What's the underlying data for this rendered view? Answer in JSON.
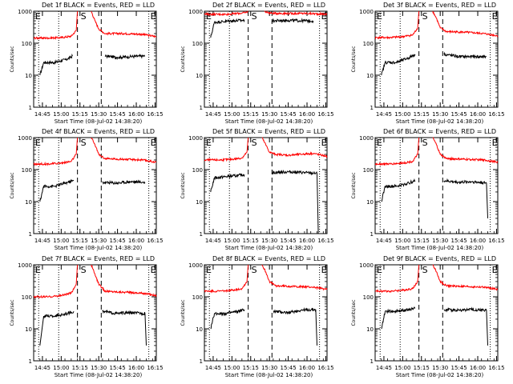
{
  "figure": {
    "x_axis_label": "Start Time (08-Jul-02 14:38:20)",
    "y_axis_label": "Counts/sec",
    "x_tick_labels": [
      "14:45",
      "15:00",
      "15:15",
      "15:30",
      "15:45",
      "16:00",
      "16:15"
    ],
    "y_tick_labels": [
      "1",
      "10",
      "100",
      "1000"
    ],
    "marker_labels": {
      "start": "E",
      "saa": "S",
      "end": "E"
    },
    "colors": {
      "events": "#000000",
      "lld": "#ff0000"
    }
  },
  "chart_data": [
    {
      "type": "line",
      "title": "Det 1f BLACK = Events, RED = LLD",
      "xlabel": "Start Time (08-Jul-02 14:38:20)",
      "ylabel": "Counts/sec",
      "xlim": [
        "14:38",
        "16:16"
      ],
      "ylim": [
        1,
        1000
      ],
      "yscale": "log",
      "markers": {
        "dotted": [
          "14:42",
          "14:58",
          "16:10"
        ],
        "dashed": [
          "15:13",
          "15:32"
        ]
      },
      "series": [
        {
          "name": "Events",
          "color": "#000000",
          "segments": [
            {
              "x": [
                "14:43",
                "14:46",
                "14:55",
                "15:05",
                "15:09"
              ],
              "y": [
                10,
                25,
                25,
                32,
                40
              ]
            },
            {
              "x": [
                "15:35",
                "15:45",
                "15:55",
                "16:07"
              ],
              "y": [
                40,
                36,
                38,
                40
              ]
            }
          ]
        },
        {
          "name": "LLD",
          "color": "#ff0000",
          "segments": [
            {
              "x": [
                "14:38",
                "14:50",
                "15:00",
                "15:08",
                "15:12",
                "15:13"
              ],
              "y": [
                145,
                145,
                150,
                165,
                250,
                1000
              ]
            },
            {
              "x": [
                "15:24",
                "15:27",
                "15:30",
                "15:35",
                "15:50",
                "16:05",
                "16:16"
              ],
              "y": [
                1000,
                500,
                280,
                200,
                200,
                190,
                160
              ]
            }
          ]
        }
      ]
    },
    {
      "type": "line",
      "title": "Det 2f BLACK = Events, RED = LLD",
      "xlabel": "Start Time (08-Jul-02 14:38:20)",
      "ylabel": "Counts/sec",
      "xlim": [
        "14:38",
        "16:16"
      ],
      "ylim": [
        1,
        1000
      ],
      "yscale": "log",
      "markers": {
        "dotted": [
          "14:42",
          "14:58",
          "16:10"
        ],
        "dashed": [
          "15:13",
          "15:32"
        ]
      },
      "series": [
        {
          "name": "Events",
          "color": "#000000",
          "segments": [
            {
              "x": [
                "14:43",
                "14:46",
                "15:00",
                "15:10"
              ],
              "y": [
                150,
                450,
                500,
                520
              ]
            },
            {
              "x": [
                "15:32",
                "15:45",
                "16:00",
                "16:05"
              ],
              "y": [
                500,
                520,
                500,
                500
              ]
            }
          ]
        },
        {
          "name": "LLD",
          "color": "#ff0000",
          "segments": [
            {
              "x": [
                "14:38",
                "14:55",
                "15:05",
                "15:11",
                "15:13"
              ],
              "y": [
                800,
                800,
                850,
                900,
                1000
              ]
            },
            {
              "x": [
                "15:26",
                "15:29",
                "15:32",
                "15:45",
                "16:00",
                "16:16"
              ],
              "y": [
                1000,
                900,
                860,
                850,
                850,
                800
              ]
            }
          ]
        }
      ]
    },
    {
      "type": "line",
      "title": "Det 3f BLACK = Events, RED = LLD",
      "xlabel": "Start Time (08-Jul-02 14:38:20)",
      "ylabel": "Counts/sec",
      "xlim": [
        "14:38",
        "16:16"
      ],
      "ylim": [
        1,
        1000
      ],
      "yscale": "log",
      "markers": {
        "dotted": [
          "14:42",
          "14:58",
          "16:10"
        ],
        "dashed": [
          "15:13",
          "15:32"
        ]
      },
      "series": [
        {
          "name": "Events",
          "color": "#000000",
          "segments": [
            {
              "x": [
                "14:43",
                "14:46",
                "14:55",
                "15:05",
                "15:10"
              ],
              "y": [
                10,
                25,
                25,
                35,
                45
              ]
            },
            {
              "x": [
                "15:33",
                "15:45",
                "15:55",
                "16:07"
              ],
              "y": [
                45,
                38,
                38,
                38
              ]
            }
          ]
        },
        {
          "name": "LLD",
          "color": "#ff0000",
          "segments": [
            {
              "x": [
                "14:38",
                "14:50",
                "15:00",
                "15:08",
                "15:12",
                "15:13"
              ],
              "y": [
                150,
                150,
                160,
                180,
                300,
                1000
              ]
            },
            {
              "x": [
                "15:24",
                "15:27",
                "15:30",
                "15:35",
                "15:50",
                "16:05",
                "16:16"
              ],
              "y": [
                1000,
                600,
                300,
                230,
                220,
                200,
                170
              ]
            }
          ]
        }
      ]
    },
    {
      "type": "line",
      "title": "Det 4f BLACK = Events, RED = LLD",
      "xlabel": "Start Time (08-Jul-02 14:38:20)",
      "ylabel": "Counts/sec",
      "xlim": [
        "14:38",
        "16:16"
      ],
      "ylim": [
        1,
        1000
      ],
      "yscale": "log",
      "markers": {
        "dotted": [
          "14:42",
          "14:58",
          "16:10"
        ],
        "dashed": [
          "15:13",
          "15:32"
        ]
      },
      "series": [
        {
          "name": "Events",
          "color": "#000000",
          "segments": [
            {
              "x": [
                "14:43",
                "14:46",
                "14:55",
                "15:05",
                "15:10"
              ],
              "y": [
                10,
                30,
                30,
                40,
                45
              ]
            },
            {
              "x": [
                "15:33",
                "15:45",
                "15:55",
                "16:07"
              ],
              "y": [
                40,
                38,
                42,
                40
              ]
            }
          ]
        },
        {
          "name": "LLD",
          "color": "#ff0000",
          "segments": [
            {
              "x": [
                "14:38",
                "14:50",
                "15:00",
                "15:08",
                "15:12",
                "15:13"
              ],
              "y": [
                150,
                150,
                160,
                180,
                300,
                1000
              ]
            },
            {
              "x": [
                "15:24",
                "15:27",
                "15:30",
                "15:35",
                "15:50",
                "16:05",
                "16:16"
              ],
              "y": [
                1000,
                600,
                300,
                220,
                210,
                200,
                170
              ]
            }
          ]
        }
      ]
    },
    {
      "type": "line",
      "title": "Det 5f BLACK = Events, RED = LLD",
      "xlabel": "Start Time (08-Jul-02 14:38:20)",
      "ylabel": "Counts/sec",
      "xlim": [
        "14:38",
        "16:16"
      ],
      "ylim": [
        1,
        1000
      ],
      "yscale": "log",
      "markers": {
        "dotted": [
          "14:42",
          "14:58",
          "16:10"
        ],
        "dashed": [
          "15:13",
          "15:32"
        ]
      },
      "series": [
        {
          "name": "Events",
          "color": "#000000",
          "segments": [
            {
              "x": [
                "14:43",
                "14:46",
                "14:55",
                "15:05",
                "15:10"
              ],
              "y": [
                20,
                55,
                60,
                65,
                70
              ]
            },
            {
              "x": [
                "15:32",
                "15:45",
                "16:00",
                "16:08",
                "16:09"
              ],
              "y": [
                80,
                85,
                80,
                75,
                1
              ]
            }
          ]
        },
        {
          "name": "LLD",
          "color": "#ff0000",
          "segments": [
            {
              "x": [
                "14:38",
                "14:50",
                "15:00",
                "15:08",
                "15:12",
                "15:13"
              ],
              "y": [
                200,
                200,
                210,
                230,
                350,
                1000
              ]
            },
            {
              "x": [
                "15:24",
                "15:27",
                "15:30",
                "15:35",
                "15:45",
                "15:55",
                "16:05",
                "16:16"
              ],
              "y": [
                1000,
                600,
                350,
                300,
                280,
                300,
                320,
                260
              ]
            }
          ]
        }
      ]
    },
    {
      "type": "line",
      "title": "Det 6f BLACK = Events, RED = LLD",
      "xlabel": "Start Time (08-Jul-02 14:38:20)",
      "ylabel": "Counts/sec",
      "xlim": [
        "14:38",
        "16:16"
      ],
      "ylim": [
        1,
        1000
      ],
      "yscale": "log",
      "markers": {
        "dotted": [
          "14:42",
          "14:58",
          "16:10"
        ],
        "dashed": [
          "15:13",
          "15:32"
        ]
      },
      "series": [
        {
          "name": "Events",
          "color": "#000000",
          "segments": [
            {
              "x": [
                "14:43",
                "14:46",
                "14:55",
                "15:05",
                "15:10"
              ],
              "y": [
                10,
                30,
                30,
                38,
                45
              ]
            },
            {
              "x": [
                "15:33",
                "15:45",
                "15:55",
                "16:07",
                "16:08"
              ],
              "y": [
                45,
                40,
                42,
                38,
                3
              ]
            }
          ]
        },
        {
          "name": "LLD",
          "color": "#ff0000",
          "segments": [
            {
              "x": [
                "14:38",
                "14:50",
                "15:00",
                "15:08",
                "15:12",
                "15:13"
              ],
              "y": [
                150,
                150,
                160,
                180,
                300,
                1000
              ]
            },
            {
              "x": [
                "15:24",
                "15:27",
                "15:30",
                "15:35",
                "15:50",
                "16:05",
                "16:16"
              ],
              "y": [
                1000,
                600,
                300,
                220,
                210,
                200,
                170
              ]
            }
          ]
        }
      ]
    },
    {
      "type": "line",
      "title": "Det 7f BLACK = Events, RED = LLD",
      "xlabel": "Start Time (08-Jul-02 14:38:20)",
      "ylabel": "Counts/sec",
      "xlim": [
        "14:38",
        "16:16"
      ],
      "ylim": [
        1,
        1000
      ],
      "yscale": "log",
      "markers": {
        "dotted": [
          "14:42",
          "14:58",
          "16:10"
        ],
        "dashed": [
          "15:13",
          "15:32"
        ]
      },
      "series": [
        {
          "name": "Events",
          "color": "#000000",
          "segments": [
            {
              "x": [
                "14:43",
                "14:46",
                "14:55",
                "15:05",
                "15:10"
              ],
              "y": [
                3,
                25,
                25,
                30,
                35
              ]
            },
            {
              "x": [
                "15:33",
                "15:45",
                "15:55",
                "16:07",
                "16:08"
              ],
              "y": [
                35,
                30,
                32,
                30,
                3
              ]
            }
          ]
        },
        {
          "name": "LLD",
          "color": "#ff0000",
          "segments": [
            {
              "x": [
                "14:38",
                "14:50",
                "15:00",
                "15:08",
                "15:12",
                "15:13"
              ],
              "y": [
                100,
                100,
                110,
                130,
                250,
                1000
              ]
            },
            {
              "x": [
                "15:24",
                "15:27",
                "15:30",
                "15:35",
                "15:50",
                "16:05",
                "16:16"
              ],
              "y": [
                1000,
                500,
                250,
                150,
                140,
                130,
                110
              ]
            }
          ]
        }
      ]
    },
    {
      "type": "line",
      "title": "Det 8f BLACK = Events, RED = LLD",
      "xlabel": "Start Time (08-Jul-02 14:38:20)",
      "ylabel": "Counts/sec",
      "xlim": [
        "14:38",
        "16:16"
      ],
      "ylim": [
        1,
        1000
      ],
      "yscale": "log",
      "markers": {
        "dotted": [
          "14:42",
          "14:58",
          "16:10"
        ],
        "dashed": [
          "15:13",
          "15:32"
        ]
      },
      "series": [
        {
          "name": "Events",
          "color": "#000000",
          "segments": [
            {
              "x": [
                "14:43",
                "14:46",
                "14:55",
                "15:05",
                "15:10"
              ],
              "y": [
                10,
                30,
                30,
                35,
                40
              ]
            },
            {
              "x": [
                "15:33",
                "15:45",
                "15:55",
                "16:07",
                "16:08"
              ],
              "y": [
                35,
                32,
                38,
                40,
                3
              ]
            }
          ]
        },
        {
          "name": "LLD",
          "color": "#ff0000",
          "segments": [
            {
              "x": [
                "14:38",
                "14:50",
                "15:00",
                "15:08",
                "15:12",
                "15:13"
              ],
              "y": [
                150,
                150,
                160,
                180,
                300,
                1000
              ]
            },
            {
              "x": [
                "15:24",
                "15:27",
                "15:30",
                "15:35",
                "15:50",
                "16:05",
                "16:16"
              ],
              "y": [
                1000,
                600,
                300,
                220,
                210,
                200,
                170
              ]
            }
          ]
        }
      ]
    },
    {
      "type": "line",
      "title": "Det 9f BLACK = Events, RED = LLD",
      "xlabel": "Start Time (08-Jul-02 14:38:20)",
      "ylabel": "Counts/sec",
      "xlim": [
        "14:38",
        "16:16"
      ],
      "ylim": [
        1,
        1000
      ],
      "yscale": "log",
      "markers": {
        "dotted": [
          "14:42",
          "14:58",
          "16:10"
        ],
        "dashed": [
          "15:13",
          "15:32"
        ]
      },
      "series": [
        {
          "name": "Events",
          "color": "#000000",
          "segments": [
            {
              "x": [
                "14:43",
                "14:46",
                "14:55",
                "15:05",
                "15:10"
              ],
              "y": [
                10,
                35,
                35,
                40,
                45
              ]
            },
            {
              "x": [
                "15:33",
                "15:45",
                "15:55",
                "16:07",
                "16:08"
              ],
              "y": [
                40,
                38,
                40,
                38,
                3
              ]
            }
          ]
        },
        {
          "name": "LLD",
          "color": "#ff0000",
          "segments": [
            {
              "x": [
                "14:38",
                "14:50",
                "15:00",
                "15:08",
                "15:12",
                "15:13"
              ],
              "y": [
                150,
                150,
                160,
                180,
                300,
                1000
              ]
            },
            {
              "x": [
                "15:24",
                "15:27",
                "15:30",
                "15:35",
                "15:50",
                "16:05",
                "16:16"
              ],
              "y": [
                1000,
                600,
                300,
                220,
                210,
                200,
                170
              ]
            }
          ]
        }
      ]
    }
  ]
}
